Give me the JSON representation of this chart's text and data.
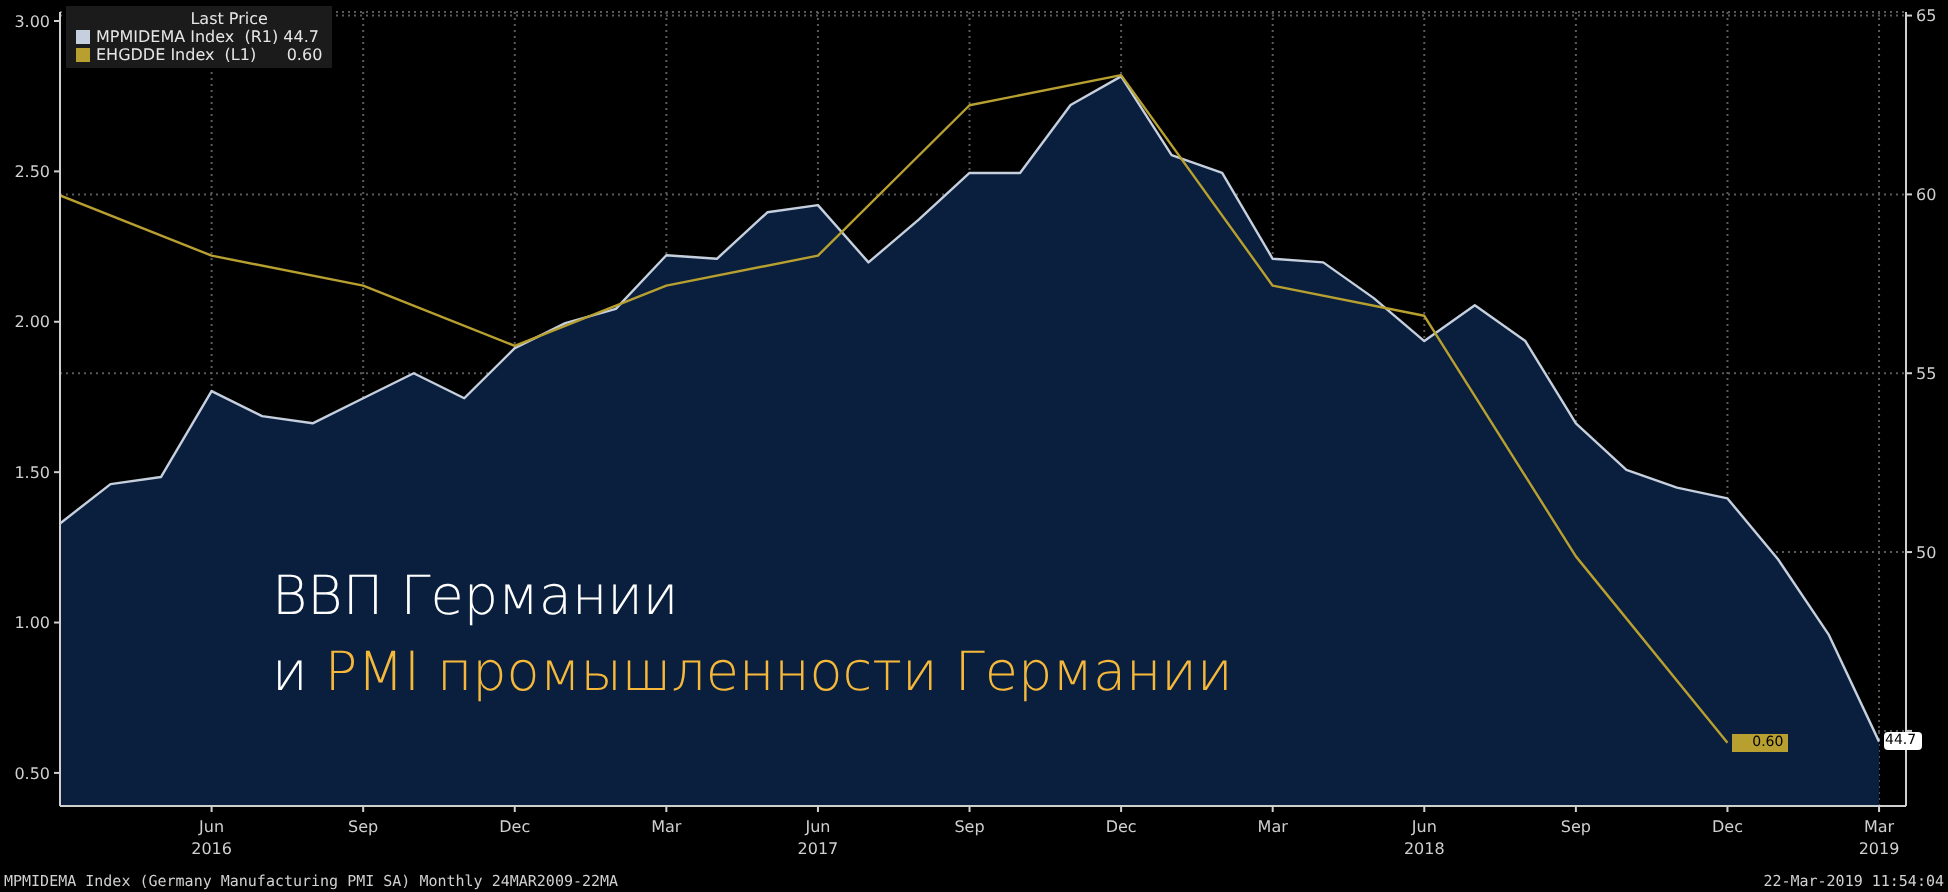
{
  "chart_data": {
    "type": "area",
    "title": "ВВП Германии",
    "subtitle": "и PMI промышленности Германии",
    "legend_title": "Last Price",
    "legend": "top left",
    "grid": true,
    "xlim": [
      "2016-03",
      "2019-03-17"
    ],
    "xticks": [
      {
        "value": "2016-06",
        "label": "Jun\n2016"
      },
      {
        "value": "2016-09",
        "label": "Sep"
      },
      {
        "value": "2016-12",
        "label": "Dec"
      },
      {
        "value": "2017-03",
        "label": "Mar"
      },
      {
        "value": "2017-06",
        "label": "Jun\n2017"
      },
      {
        "value": "2017-09",
        "label": "Sep"
      },
      {
        "value": "2017-12",
        "label": "Dec"
      },
      {
        "value": "2018-03",
        "label": "Mar"
      },
      {
        "value": "2018-06",
        "label": "Jun\n2018"
      },
      {
        "value": "2018-09",
        "label": "Sep"
      },
      {
        "value": "2018-12",
        "label": "Dec"
      },
      {
        "value": "2019-03",
        "label": "Mar\n2019"
      }
    ],
    "ylim": [
      0.39,
      3.03
    ],
    "yticks": [
      {
        "value": 0.5,
        "label": "0.50"
      },
      {
        "value": 1,
        "label": "1.00"
      },
      {
        "value": 1.5,
        "label": "1.50"
      },
      {
        "value": 2,
        "label": "2.00"
      },
      {
        "value": 2.5,
        "label": "2.50"
      },
      {
        "value": 3,
        "label": "3.00"
      }
    ],
    "y2lim": [
      42.9,
      65.1
    ],
    "y2ticks": [
      {
        "value": 45,
        "label": null
      },
      50,
      55,
      60,
      65
    ],
    "series": [
      {
        "name": "MPMIDEMA Index  (R1) 44.7",
        "axis": "y2",
        "color": "#c5cfdd",
        "x": [
          "2016-03",
          "2016-04",
          "2016-05",
          "2016-06",
          "2016-07",
          "2016-08",
          "2016-09",
          "2016-10",
          "2016-11",
          "2016-12",
          "2017-01",
          "2017-02",
          "2017-03",
          "2017-04",
          "2017-05",
          "2017-06",
          "2017-07",
          "2017-08",
          "2017-09",
          "2017-10",
          "2017-11",
          "2017-12",
          "2018-01",
          "2018-02",
          "2018-03",
          "2018-04",
          "2018-05",
          "2018-06",
          "2018-07",
          "2018-08",
          "2018-09",
          "2018-10",
          "2018-11",
          "2018-12",
          "2019-01",
          "2019-02",
          "2019-03"
        ],
        "values": [
          50.8,
          51.9,
          52.1,
          54.5,
          53.8,
          53.6,
          54.3,
          55.0,
          54.3,
          55.7,
          56.4,
          56.8,
          58.3,
          58.2,
          59.5,
          59.7,
          58.1,
          59.3,
          60.6,
          60.6,
          62.5,
          63.3,
          61.1,
          60.6,
          58.2,
          58.1,
          57.1,
          55.9,
          56.9,
          55.9,
          53.6,
          52.3,
          51.8,
          51.5,
          49.8,
          47.7,
          44.7
        ],
        "value_labels": [
          null,
          null,
          null,
          null,
          null,
          null,
          null,
          null,
          null,
          null,
          null,
          null,
          null,
          null,
          null,
          null,
          null,
          null,
          null,
          null,
          null,
          null,
          null,
          null,
          null,
          null,
          null,
          null,
          null,
          null,
          null,
          null,
          null,
          null,
          null,
          null,
          "44.7"
        ]
      },
      {
        "name": "EHGDDE Index  (L1)      0.60",
        "type": "line",
        "color": "#b8a030",
        "x": [
          "2016-03",
          "2016-06",
          "2016-09",
          "2016-12",
          "2017-03",
          "2017-06",
          "2017-09",
          "2017-12",
          "2018-03",
          "2018-06",
          "2018-09",
          "2018-12"
        ],
        "values": [
          2.42,
          2.22,
          2.12,
          1.92,
          2.12,
          2.22,
          2.72,
          2.82,
          2.12,
          2.02,
          1.22,
          0.6
        ],
        "value_labels": [
          null,
          null,
          null,
          null,
          null,
          null,
          null,
          null,
          null,
          null,
          null,
          "0.60"
        ]
      }
    ],
    "annotations": [
      "MPMIDEMA Index (Germany Manufacturing PMI SA)  Monthly 24MAR2009-22MA",
      "22-Mar-2019 11:54:04"
    ]
  }
}
